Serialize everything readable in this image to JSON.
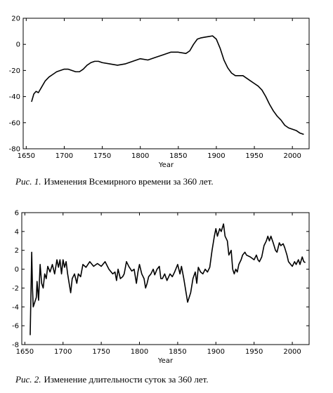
{
  "chart_data": [
    {
      "type": "line",
      "caption_label": "Рис. 1.",
      "caption": "Изменения Всемирного времени за 360 лет.",
      "x_label": "Year",
      "xlim": [
        1646,
        2022
      ],
      "ylim": [
        -80,
        20
      ],
      "xticks": [
        1650,
        1700,
        1750,
        1800,
        1850,
        1900,
        1950,
        2000
      ],
      "yticks": [
        -80,
        -60,
        -40,
        -20,
        0,
        20
      ],
      "color": "#000000",
      "x": [
        1657,
        1660,
        1663,
        1666,
        1670,
        1675,
        1680,
        1685,
        1690,
        1695,
        1700,
        1705,
        1710,
        1715,
        1720,
        1725,
        1730,
        1735,
        1740,
        1745,
        1750,
        1760,
        1770,
        1780,
        1790,
        1800,
        1810,
        1820,
        1830,
        1840,
        1850,
        1860,
        1865,
        1870,
        1875,
        1880,
        1885,
        1890,
        1895,
        1900,
        1905,
        1910,
        1915,
        1920,
        1925,
        1930,
        1935,
        1940,
        1945,
        1950,
        1955,
        1960,
        1965,
        1970,
        1975,
        1980,
        1985,
        1990,
        1995,
        2000,
        2005,
        2010,
        2015
      ],
      "values": [
        -44,
        -38,
        -36,
        -37,
        -33,
        -28,
        -25,
        -23,
        -21,
        -20,
        -19,
        -19,
        -20,
        -21,
        -21,
        -19,
        -16,
        -14,
        -13,
        -13,
        -14,
        -15,
        -16,
        -15,
        -13,
        -11,
        -12,
        -10,
        -8,
        -6,
        -6,
        -7,
        -5,
        0,
        4,
        5,
        5.5,
        6,
        6.5,
        4,
        -3,
        -12,
        -18,
        -22,
        -24,
        -24,
        -24,
        -26,
        -28,
        -30,
        -32,
        -35,
        -40,
        -46,
        -51,
        -55,
        -58,
        -62,
        -64,
        -65,
        -66,
        -68,
        -69
      ]
    },
    {
      "type": "line",
      "caption_label": "Рис. 2.",
      "caption": "Изменение длительности суток за 360 лет.",
      "x_label": "Year",
      "xlim": [
        1646,
        2022
      ],
      "ylim": [
        -8,
        6
      ],
      "xticks": [
        1650,
        1700,
        1750,
        1800,
        1850,
        1900,
        1950,
        2000
      ],
      "yticks": [
        -8,
        -6,
        -4,
        -2,
        0,
        2,
        4,
        6
      ],
      "color": "#000000",
      "x": [
        1657,
        1659,
        1660,
        1661,
        1663,
        1665,
        1666,
        1668,
        1670,
        1672,
        1674,
        1676,
        1678,
        1680,
        1683,
        1686,
        1689,
        1692,
        1694,
        1696,
        1698,
        1700,
        1702,
        1704,
        1706,
        1708,
        1710,
        1712,
        1715,
        1718,
        1720,
        1723,
        1726,
        1730,
        1735,
        1740,
        1745,
        1750,
        1755,
        1760,
        1765,
        1768,
        1770,
        1772,
        1775,
        1778,
        1780,
        1783,
        1786,
        1790,
        1793,
        1796,
        1798,
        1800,
        1803,
        1806,
        1808,
        1810,
        1812,
        1815,
        1818,
        1820,
        1823,
        1826,
        1828,
        1830,
        1833,
        1836,
        1840,
        1843,
        1846,
        1850,
        1853,
        1855,
        1858,
        1860,
        1863,
        1865,
        1867,
        1870,
        1873,
        1875,
        1877,
        1880,
        1883,
        1886,
        1889,
        1892,
        1895,
        1898,
        1900,
        1902,
        1905,
        1907,
        1910,
        1912,
        1915,
        1917,
        1920,
        1922,
        1924,
        1926,
        1928,
        1930,
        1933,
        1935,
        1938,
        1940,
        1945,
        1950,
        1953,
        1955,
        1957,
        1960,
        1963,
        1966,
        1968,
        1970,
        1972,
        1975,
        1978,
        1980,
        1983,
        1985,
        1988,
        1990,
        1993,
        1995,
        1998,
        2000,
        2003,
        2005,
        2008,
        2010,
        2013,
        2015,
        2017
      ],
      "values": [
        -7,
        1.8,
        -2,
        -4,
        -3.5,
        -3,
        -1.3,
        -3.3,
        0.5,
        -1.5,
        -2,
        -0.5,
        -1,
        0.3,
        -0.3,
        0.5,
        -0.5,
        1,
        0.2,
        1,
        -0.5,
        1,
        0.2,
        0.8,
        -0.5,
        -1.5,
        -2.5,
        -1,
        -0.5,
        -1.5,
        -0.5,
        -0.8,
        0.5,
        0.2,
        0.8,
        0.3,
        0.6,
        0.3,
        0.8,
        0,
        -0.5,
        -0.3,
        -1.2,
        0,
        -1,
        -0.8,
        -0.5,
        0.8,
        0.3,
        -0.2,
        0,
        -1.5,
        -0.3,
        0.5,
        -0.5,
        -1,
        -2,
        -1.5,
        -0.8,
        -0.5,
        0,
        -0.6,
        0,
        0.3,
        -1,
        -1,
        -0.5,
        -1.2,
        -0.5,
        -0.8,
        -0.3,
        0.5,
        -0.5,
        0.3,
        -1,
        -2,
        -3.5,
        -3,
        -2.5,
        -1,
        -0.3,
        -1.5,
        0.2,
        -0.3,
        -0.5,
        0,
        -0.3,
        0.2,
        2,
        3.5,
        4.3,
        3.5,
        4.3,
        4,
        4.8,
        3.5,
        3,
        1.5,
        2,
        0,
        -0.5,
        0,
        -0.3,
        0.5,
        1,
        1.5,
        1.8,
        1.5,
        1.3,
        1,
        1.5,
        1,
        0.8,
        1.3,
        2.5,
        3,
        3.5,
        3,
        3.5,
        2.8,
        2,
        1.8,
        2.8,
        2.5,
        2.7,
        2.3,
        1.5,
        0.8,
        0.5,
        0.3,
        0.8,
        0.5,
        1,
        0.5,
        1.3,
        0.8,
        0.7
      ]
    }
  ]
}
